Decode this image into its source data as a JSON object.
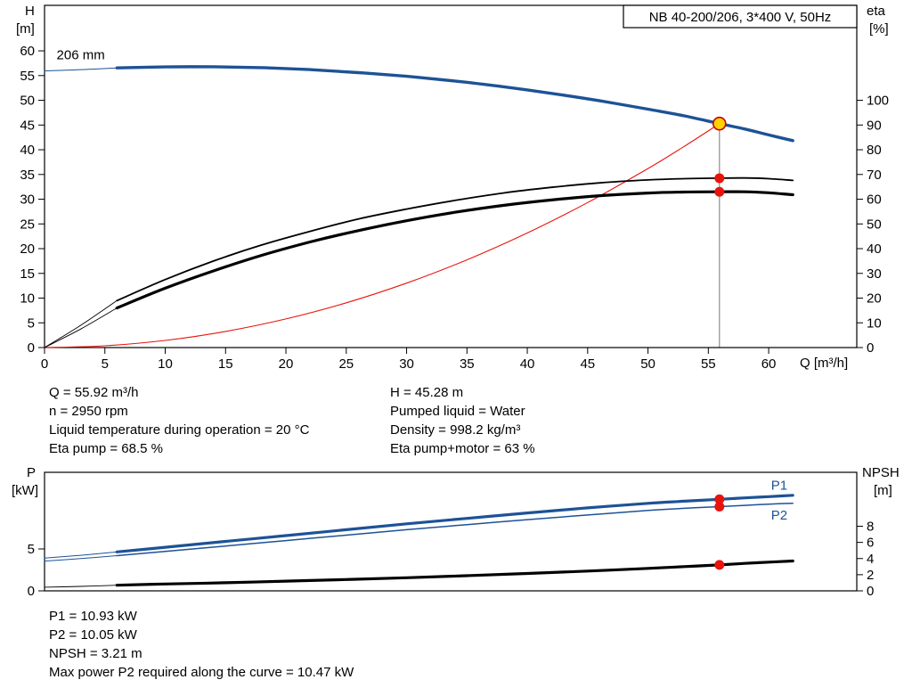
{
  "colors": {
    "curve_blue": "#1d5296",
    "curve_red": "#e8140c",
    "curve_black": "#000000",
    "duty_yellow": "#ffd200",
    "duty_ring": "#c00000",
    "marker_red": "#e8140c",
    "duty_line_gray": "#8c8c8c",
    "axis_black": "#000000"
  },
  "texts": {
    "top_left_axis_label": "H",
    "top_left_axis_unit": "[m]",
    "top_right_axis_label": "eta",
    "top_right_axis_unit": "[%]",
    "bottom_left_axis_label": "P",
    "bottom_left_axis_unit": "[kW]",
    "bottom_right_axis_label": "NPSH",
    "bottom_right_axis_unit": "[m]"
  },
  "mid_text_left": [
    "Q = 55.92 m³/h",
    "n = 2950 rpm",
    "Liquid temperature during operation = 20 °C",
    "Eta pump = 68.5 %"
  ],
  "mid_text_right": [
    "H = 45.28 m",
    "Pumped liquid = Water",
    "Density = 998.2 kg/m³",
    "Eta pump+motor = 63 %"
  ],
  "bottom_text": [
    "P1 = 10.93 kW",
    "P2 = 10.05 kW",
    "NPSH = 3.21 m",
    "Max power P2 required along the curve = 10.47 kW"
  ],
  "chart_data": [
    {
      "type": "line",
      "title_box": "NB 40-200/206, 3*400 V, 50Hz",
      "xlabel": "Q [m³/h]",
      "xlim": [
        0,
        67.3
      ],
      "x_ticks": [
        0,
        5,
        10,
        15,
        20,
        25,
        30,
        35,
        40,
        45,
        50,
        55,
        60
      ],
      "left_axis": {
        "label": "H [m]",
        "lim": [
          0,
          69.2
        ],
        "ticks": [
          0,
          5,
          10,
          15,
          20,
          25,
          30,
          35,
          40,
          45,
          50,
          55,
          60
        ]
      },
      "right_axis": {
        "label": "eta [%]",
        "lim": [
          0,
          138.4
        ],
        "ticks": [
          0,
          10,
          20,
          30,
          40,
          50,
          60,
          70,
          80,
          90,
          100
        ]
      },
      "annotations": [
        {
          "name": "impeller-diameter-label",
          "text": "206 mm",
          "x": 1.0,
          "y": 58.3,
          "axis": "left",
          "color": "curve_black"
        }
      ],
      "duty_line": {
        "x": 55.92,
        "from_y": 45.28,
        "axis": "left"
      },
      "series": [
        {
          "name": "qh-curve-lead",
          "axis": "left",
          "color": "curve_blue",
          "width": 1,
          "points": [
            [
              0,
              55.95
            ],
            [
              3,
              56.2
            ],
            [
              6,
              56.55
            ]
          ]
        },
        {
          "name": "qh-curve",
          "axis": "left",
          "color": "curve_blue",
          "width": 3.4,
          "points": [
            [
              6,
              56.55
            ],
            [
              10,
              56.75
            ],
            [
              14,
              56.78
            ],
            [
              18,
              56.6
            ],
            [
              22,
              56.2
            ],
            [
              26,
              55.6
            ],
            [
              30,
              54.85
            ],
            [
              34,
              53.9
            ],
            [
              38,
              52.75
            ],
            [
              42,
              51.4
            ],
            [
              46,
              49.9
            ],
            [
              50,
              48.2
            ],
            [
              53,
              46.85
            ],
            [
              55.92,
              45.28
            ],
            [
              58,
              44.2
            ],
            [
              60,
              43.0
            ],
            [
              62,
              41.85
            ]
          ]
        },
        {
          "name": "system-curve",
          "axis": "left",
          "color": "curve_red",
          "width": 1.1,
          "points": [
            [
              0,
              0
            ],
            [
              5,
              0.36
            ],
            [
              10,
              1.45
            ],
            [
              15,
              3.26
            ],
            [
              20,
              5.79
            ],
            [
              25,
              9.05
            ],
            [
              30,
              13.03
            ],
            [
              35,
              17.74
            ],
            [
              40,
              23.17
            ],
            [
              45,
              29.32
            ],
            [
              50,
              36.2
            ],
            [
              53,
              40.67
            ],
            [
              55.92,
              45.28
            ]
          ]
        },
        {
          "name": "eta-pump-curve-lead",
          "axis": "right",
          "color": "curve_black",
          "width": 0.9,
          "points": [
            [
              0,
              0
            ],
            [
              3,
              9
            ],
            [
              6,
              19
            ]
          ]
        },
        {
          "name": "eta-pump-curve",
          "axis": "right",
          "color": "curve_black",
          "width": 1.8,
          "points": [
            [
              6,
              19
            ],
            [
              10,
              27.5
            ],
            [
              14,
              35
            ],
            [
              18,
              41.5
            ],
            [
              22,
              47
            ],
            [
              26,
              52
            ],
            [
              30,
              56
            ],
            [
              34,
              59.5
            ],
            [
              38,
              62.5
            ],
            [
              42,
              64.8
            ],
            [
              46,
              66.6
            ],
            [
              50,
              67.8
            ],
            [
              53,
              68.3
            ],
            [
              55.92,
              68.5
            ],
            [
              58,
              68.6
            ],
            [
              60,
              68.3
            ],
            [
              62,
              67.6
            ]
          ]
        },
        {
          "name": "eta-pump-motor-curve-lead",
          "axis": "right",
          "color": "curve_black",
          "width": 0.9,
          "points": [
            [
              0,
              0
            ],
            [
              3,
              7.5
            ],
            [
              6,
              16
            ]
          ]
        },
        {
          "name": "eta-pump-motor-curve",
          "axis": "right",
          "color": "curve_black",
          "width": 3.2,
          "points": [
            [
              6,
              16
            ],
            [
              10,
              24
            ],
            [
              14,
              31
            ],
            [
              18,
              37.3
            ],
            [
              22,
              42.7
            ],
            [
              26,
              47.3
            ],
            [
              30,
              51.3
            ],
            [
              34,
              54.7
            ],
            [
              38,
              57.5
            ],
            [
              42,
              59.7
            ],
            [
              46,
              61.4
            ],
            [
              50,
              62.5
            ],
            [
              53,
              62.9
            ],
            [
              55.92,
              63.0
            ],
            [
              58,
              63.0
            ],
            [
              60,
              62.6
            ],
            [
              62,
              61.8
            ]
          ]
        }
      ],
      "markers": [
        {
          "name": "duty-point-marker",
          "x": 55.92,
          "y": 45.28,
          "axis": "left",
          "r": 7,
          "fill": "duty_yellow",
          "stroke": "duty_ring"
        },
        {
          "name": "eta-pump-duty-marker",
          "x": 55.92,
          "y": 68.5,
          "axis": "right",
          "r": 5.5,
          "fill": "marker_red"
        },
        {
          "name": "eta-pump-motor-duty-marker",
          "x": 55.92,
          "y": 63.0,
          "axis": "right",
          "r": 5.5,
          "fill": "marker_red"
        }
      ],
      "duty_point": {
        "Q": 55.92,
        "H": 45.28,
        "eta_pump": 68.5,
        "eta_pump_motor": 63.0
      }
    },
    {
      "type": "line",
      "xlabel": "",
      "xlim": [
        0,
        67.3
      ],
      "x_ticks": [],
      "left_axis": {
        "label": "P [kW]",
        "lim": [
          0,
          14.15
        ],
        "ticks": [
          0,
          5
        ]
      },
      "right_axis": {
        "label": "NPSH [m]",
        "lim": [
          0,
          14.68
        ],
        "ticks": [
          0,
          2,
          4,
          6,
          8
        ]
      },
      "annotations": [
        {
          "name": "p1-curve-label",
          "text": "P1",
          "x": 60.2,
          "y": 12.1,
          "axis": "left",
          "color": "curve_blue"
        },
        {
          "name": "p2-curve-label",
          "text": "P2",
          "x": 60.2,
          "y": 8.5,
          "axis": "left",
          "color": "curve_blue"
        }
      ],
      "series": [
        {
          "name": "p1-curve-lead",
          "axis": "left",
          "color": "curve_blue",
          "width": 1,
          "points": [
            [
              0,
              3.9
            ],
            [
              3,
              4.25
            ],
            [
              6,
              4.65
            ]
          ]
        },
        {
          "name": "p1-curve",
          "axis": "left",
          "color": "curve_blue",
          "width": 3.2,
          "points": [
            [
              6,
              4.65
            ],
            [
              10,
              5.2
            ],
            [
              15,
              5.9
            ],
            [
              20,
              6.6
            ],
            [
              25,
              7.3
            ],
            [
              30,
              8.0
            ],
            [
              35,
              8.65
            ],
            [
              40,
              9.3
            ],
            [
              45,
              9.9
            ],
            [
              50,
              10.45
            ],
            [
              53,
              10.7
            ],
            [
              55.92,
              10.93
            ],
            [
              58,
              11.1
            ],
            [
              60,
              11.25
            ],
            [
              62,
              11.4
            ]
          ]
        },
        {
          "name": "p2-curve-lead",
          "axis": "left",
          "color": "curve_blue",
          "width": 1,
          "points": [
            [
              0,
              3.55
            ],
            [
              3,
              3.85
            ],
            [
              6,
              4.2
            ]
          ]
        },
        {
          "name": "p2-curve",
          "axis": "left",
          "color": "curve_blue",
          "width": 1.5,
          "points": [
            [
              6,
              4.2
            ],
            [
              10,
              4.7
            ],
            [
              15,
              5.35
            ],
            [
              20,
              6.0
            ],
            [
              25,
              6.65
            ],
            [
              30,
              7.3
            ],
            [
              35,
              7.9
            ],
            [
              40,
              8.5
            ],
            [
              45,
              9.05
            ],
            [
              50,
              9.6
            ],
            [
              53,
              9.85
            ],
            [
              55.92,
              10.05
            ],
            [
              58,
              10.2
            ],
            [
              60,
              10.35
            ],
            [
              62,
              10.45
            ]
          ]
        },
        {
          "name": "npsh-curve-lead",
          "axis": "right",
          "color": "curve_black",
          "width": 0.9,
          "points": [
            [
              0,
              0.45
            ],
            [
              3,
              0.55
            ],
            [
              6,
              0.7
            ]
          ]
        },
        {
          "name": "npsh-curve",
          "axis": "right",
          "color": "curve_black",
          "width": 3.2,
          "points": [
            [
              6,
              0.7
            ],
            [
              10,
              0.85
            ],
            [
              15,
              1.0
            ],
            [
              20,
              1.2
            ],
            [
              25,
              1.4
            ],
            [
              30,
              1.62
            ],
            [
              35,
              1.88
            ],
            [
              40,
              2.15
            ],
            [
              45,
              2.45
            ],
            [
              50,
              2.78
            ],
            [
              53,
              3.0
            ],
            [
              55.92,
              3.21
            ],
            [
              58,
              3.4
            ],
            [
              60,
              3.55
            ],
            [
              62,
              3.7
            ]
          ]
        }
      ],
      "markers": [
        {
          "name": "p1-duty-marker",
          "x": 55.92,
          "y": 10.93,
          "axis": "left",
          "r": 5.5,
          "fill": "marker_red"
        },
        {
          "name": "p2-duty-marker",
          "x": 55.92,
          "y": 10.05,
          "axis": "left",
          "r": 5.5,
          "fill": "marker_red"
        },
        {
          "name": "npsh-duty-marker",
          "x": 55.92,
          "y": 3.21,
          "axis": "right",
          "r": 5.5,
          "fill": "marker_red"
        }
      ],
      "duty_point": {
        "Q": 55.92,
        "P1": 10.93,
        "P2": 10.05,
        "NPSH": 3.21
      }
    }
  ]
}
